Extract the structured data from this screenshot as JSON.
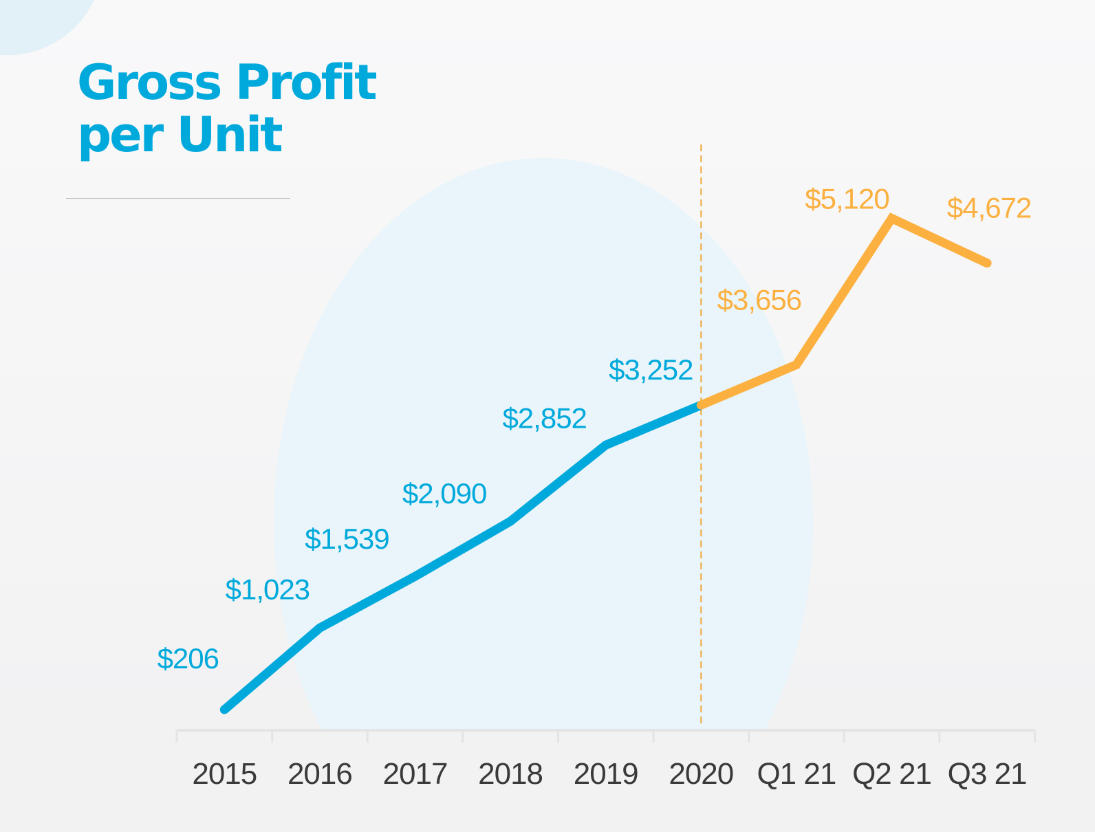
{
  "chart_data": {
    "type": "line",
    "title": "Gross Profit per Unit",
    "title_lines": [
      "Gross Profit",
      "per Unit"
    ],
    "categories": [
      "2015",
      "2016",
      "2017",
      "2018",
      "2019",
      "2020",
      "Q1 21",
      "Q2 21",
      "Q3 21"
    ],
    "values": [
      206,
      1023,
      1539,
      2090,
      2852,
      3252,
      3656,
      5120,
      4672
    ],
    "data_labels": [
      "$206",
      "$1,023",
      "$1,539",
      "$2,090",
      "$2,852",
      "$3,252",
      "$3,656",
      "$5,120",
      "$4,672"
    ],
    "segments": [
      {
        "range": [
          "2015",
          "2020"
        ],
        "color": "#00a9db"
      },
      {
        "range": [
          "2020",
          "Q3 21"
        ],
        "color": "#fbb040"
      }
    ],
    "divider_after": "2020",
    "xlabel": "",
    "ylabel": "",
    "ylim": [
      0,
      5000
    ],
    "grid": false,
    "legend": "none"
  },
  "colors": {
    "title": "#00a9db",
    "annual": "#00a9db",
    "quarterly": "#fbb040",
    "divider": "#f0a83a",
    "axis": "#e4e4e4"
  }
}
